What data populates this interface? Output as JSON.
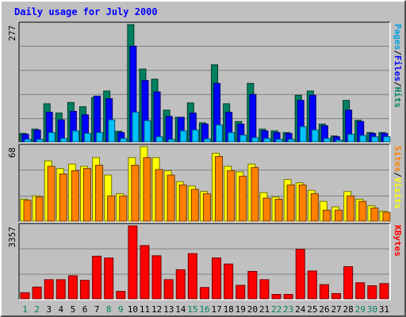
{
  "chart_data": {
    "type": "bar",
    "title": "Daily usage for July 2000",
    "days": [
      {
        "label": "1",
        "weekend": true
      },
      {
        "label": "2",
        "weekend": true
      },
      {
        "label": "3",
        "weekend": false
      },
      {
        "label": "4",
        "weekend": false
      },
      {
        "label": "5",
        "weekend": false
      },
      {
        "label": "6",
        "weekend": false
      },
      {
        "label": "7",
        "weekend": false
      },
      {
        "label": "8",
        "weekend": true
      },
      {
        "label": "9",
        "weekend": true
      },
      {
        "label": "10",
        "weekend": false
      },
      {
        "label": "11",
        "weekend": false
      },
      {
        "label": "12",
        "weekend": false
      },
      {
        "label": "13",
        "weekend": false
      },
      {
        "label": "14",
        "weekend": false
      },
      {
        "label": "15",
        "weekend": true
      },
      {
        "label": "16",
        "weekend": true
      },
      {
        "label": "17",
        "weekend": false
      },
      {
        "label": "18",
        "weekend": false
      },
      {
        "label": "19",
        "weekend": false
      },
      {
        "label": "20",
        "weekend": false
      },
      {
        "label": "21",
        "weekend": false
      },
      {
        "label": "22",
        "weekend": true
      },
      {
        "label": "23",
        "weekend": true
      },
      {
        "label": "24",
        "weekend": false
      },
      {
        "label": "25",
        "weekend": false
      },
      {
        "label": "26",
        "weekend": false
      },
      {
        "label": "27",
        "weekend": false
      },
      {
        "label": "28",
        "weekend": false
      },
      {
        "label": "29",
        "weekend": true
      },
      {
        "label": "30",
        "weekend": true
      },
      {
        "label": "31",
        "weekend": false
      }
    ],
    "panels": [
      {
        "max": 277,
        "max_label": "277",
        "legend": [
          {
            "text": "Pages",
            "color": "#00a0e0"
          },
          {
            "text": "/",
            "color": "#000000"
          },
          {
            "text": "Files",
            "color": "#0000ff"
          },
          {
            "text": "/",
            "color": "#000000"
          },
          {
            "text": "Hits",
            "color": "#008060"
          }
        ],
        "series": [
          {
            "name": "Hits",
            "color": "#008060",
            "values": [
              20,
              30,
              90,
              68,
              93,
              83,
              105,
              120,
              25,
              277,
              172,
              148,
              75,
              58,
              92,
              45,
              182,
              90,
              48,
              138,
              30,
              26,
              22,
              110,
              120,
              42,
              14,
              98,
              51,
              22,
              22
            ]
          },
          {
            "name": "Files",
            "color": "#0000ff",
            "values": [
              18,
              28,
              70,
              52,
              72,
              64,
              108,
              102,
              22,
              226,
              145,
              118,
              60,
              58,
              68,
              42,
              138,
              70,
              42,
              112,
              26,
              22,
              20,
              98,
              110,
              38,
              12,
              75,
              48,
              20,
              20
            ]
          },
          {
            "name": "Pages",
            "color": "#00c0ff",
            "values": [
              6,
              6,
              22,
              8,
              26,
              20,
              22,
              52,
              8,
              70,
              50,
              12,
              6,
              26,
              28,
              7,
              40,
              22,
              16,
              10,
              8,
              6,
              6,
              36,
              28,
              8,
              4,
              18,
              15,
              12,
              12
            ]
          }
        ]
      },
      {
        "max": 68,
        "max_label": "68",
        "legend": [
          {
            "text": "Sites",
            "color": "#ff8000"
          },
          {
            "text": "/",
            "color": "#000000"
          },
          {
            "text": "Visits",
            "color": "#ffff00"
          }
        ],
        "series": [
          {
            "name": "Visits",
            "color": "#ffff00",
            "values": [
              20,
              23,
              55,
              48,
              52,
              50,
              58,
              42,
              25,
              58,
              68,
              58,
              46,
              36,
              32,
              27,
              62,
              50,
              45,
              52,
              26,
              22,
              38,
              35,
              28,
              18,
              13,
              27,
              20,
              14,
              9
            ]
          },
          {
            "name": "Sites",
            "color": "#ff8000",
            "values": [
              19,
              22,
              50,
              43,
              46,
              48,
              51,
              23,
              23,
              51,
              58,
              47,
              42,
              33,
              29,
              25,
              59,
              46,
              41,
              49,
              21,
              20,
              33,
              33,
              25,
              10,
              10,
              23,
              18,
              12,
              8
            ]
          }
        ]
      },
      {
        "max": 3357,
        "max_label": "3357",
        "legend": [
          {
            "text": "KBytes",
            "color": "#ff0000"
          }
        ],
        "series": [
          {
            "name": "KBytes",
            "color": "#ff0000",
            "values": [
              280,
              540,
              880,
              880,
              1060,
              850,
              1960,
              1880,
              340,
              3357,
              2450,
              1980,
              880,
              1340,
              2080,
              520,
              1880,
              1600,
              620,
              1260,
              880,
              200,
              200,
              2280,
              1280,
              650,
              240,
              1480,
              740,
              600,
              700
            ]
          }
        ]
      }
    ]
  }
}
